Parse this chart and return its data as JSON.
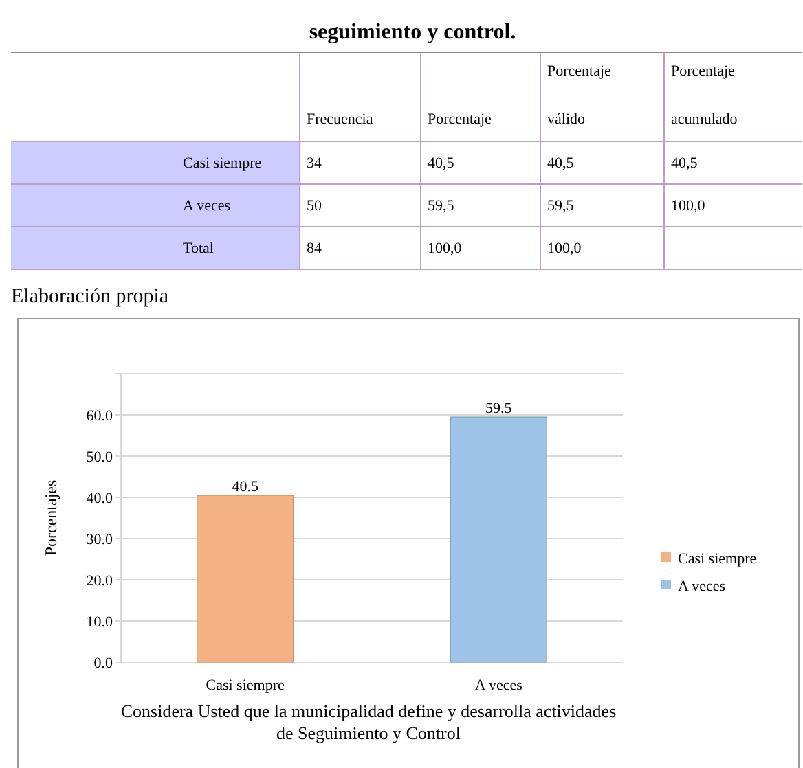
{
  "chart_data": [
    {
      "type": "other",
      "title": "seguimiento y control.",
      "annotations": [
        "Frecuencia",
        "Porcentaje",
        "Porcentaje válido",
        "Porcentaje acumulado",
        "Casi siempre",
        "34",
        "40,5",
        "40,5",
        "40,5",
        "A veces",
        "50",
        "59,5",
        "59,5",
        "100,0",
        "Total",
        "84",
        "100,0",
        "100,0",
        "Elaboración propia"
      ]
    },
    {
      "type": "bar",
      "categories": [
        "Casi siempre",
        "A veces"
      ],
      "series": [
        {
          "name": "Casi siempre",
          "color": "#f4b183",
          "values": [
            40.5,
            null
          ]
        },
        {
          "name": "A veces",
          "color": "#9dc3e6",
          "values": [
            null,
            59.5
          ]
        }
      ],
      "ylim": [
        0,
        70
      ],
      "yticks": [
        {
          "value": 0,
          "label": "0.0"
        },
        {
          "value": 10,
          "label": "10.0"
        },
        {
          "value": 20,
          "label": "20.0"
        },
        {
          "value": 30,
          "label": "30.0"
        },
        {
          "value": 40,
          "label": "40.0"
        },
        {
          "value": 50,
          "label": "50.0"
        },
        {
          "value": 60,
          "label": "60.0"
        },
        {
          "value": 70,
          "label": null
        }
      ],
      "grid": "y",
      "legend": "right",
      "data_labels": true,
      "ylabel": "Porcentajes",
      "xlabel": "Considera Usted que la municipalidad define y desarrolla actividades de Seguimiento  y Control"
    }
  ]
}
